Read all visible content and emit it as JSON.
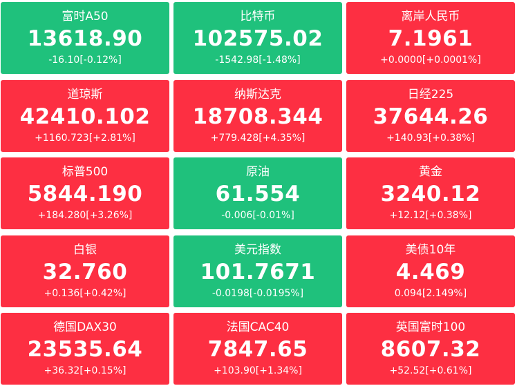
{
  "colors": {
    "up": "#fd2f42",
    "down": "#1fc17c",
    "text": "#ffffff"
  },
  "quotes": [
    {
      "name": "富时A50",
      "price": "13618.90",
      "change": "-16.10[-0.12%]",
      "direction": "down"
    },
    {
      "name": "比特币",
      "price": "102575.02",
      "change": "-1542.98[-1.48%]",
      "direction": "down"
    },
    {
      "name": "离岸人民币",
      "price": "7.1961",
      "change": "+0.0000[+0.0001%]",
      "direction": "up"
    },
    {
      "name": "道琼斯",
      "price": "42410.102",
      "change": "+1160.723[+2.81%]",
      "direction": "up"
    },
    {
      "name": "纳斯达克",
      "price": "18708.344",
      "change": "+779.428[+4.35%]",
      "direction": "up"
    },
    {
      "name": "日经225",
      "price": "37644.26",
      "change": "+140.93[+0.38%]",
      "direction": "up"
    },
    {
      "name": "标普500",
      "price": "5844.190",
      "change": "+184.280[+3.26%]",
      "direction": "up"
    },
    {
      "name": "原油",
      "price": "61.554",
      "change": "-0.006[-0.01%]",
      "direction": "down"
    },
    {
      "name": "黄金",
      "price": "3240.12",
      "change": "+12.12[+0.38%]",
      "direction": "up"
    },
    {
      "name": "白银",
      "price": "32.760",
      "change": "+0.136[+0.42%]",
      "direction": "up"
    },
    {
      "name": "美元指数",
      "price": "101.7671",
      "change": "-0.0198[-0.0195%]",
      "direction": "down"
    },
    {
      "name": "美债10年",
      "price": "4.469",
      "change": "0.094[2.149%]",
      "direction": "up"
    },
    {
      "name": "德国DAX30",
      "price": "23535.64",
      "change": "+36.32[+0.15%]",
      "direction": "up"
    },
    {
      "name": "法国CAC40",
      "price": "7847.65",
      "change": "+103.90[+1.34%]",
      "direction": "up"
    },
    {
      "name": "英国富时100",
      "price": "8607.32",
      "change": "+52.52[+0.61%]",
      "direction": "up"
    }
  ]
}
